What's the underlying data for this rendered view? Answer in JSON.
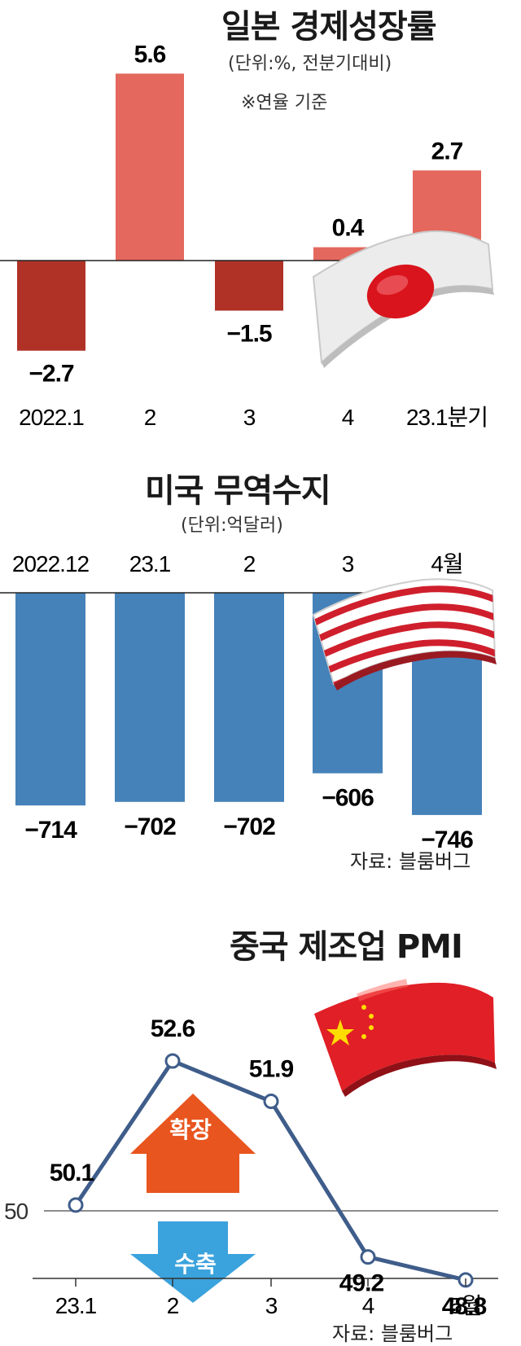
{
  "chart_data": [
    {
      "type": "bar",
      "title": "일본 경제성장률",
      "unit_note": "(단위:%, 전분기대비)",
      "note": "※연율 기준",
      "categories": [
        "2022.1",
        "2",
        "3",
        "4",
        "23.1분기"
      ],
      "values": [
        -2.7,
        5.6,
        -1.5,
        0.4,
        2.7
      ],
      "value_labels": [
        "−2.7",
        "5.6",
        "−1.5",
        "0.4",
        "2.7"
      ],
      "colors": {
        "negative": "#b03227",
        "positive": "#e4685d"
      },
      "flag_icon": "japan-flag-icon"
    },
    {
      "type": "bar",
      "title": "미국 무역수지",
      "unit_note": "(단위:억달러)",
      "categories": [
        "2022.12",
        "23.1",
        "2",
        "3",
        "4월"
      ],
      "values": [
        -714,
        -702,
        -702,
        -606,
        -746
      ],
      "value_labels": [
        "−714",
        "−702",
        "−702",
        "−606",
        "−746"
      ],
      "source": "자료: 블룸버그",
      "colors": {
        "bar": "#4582b9"
      },
      "flag_icon": "us-flag-icon"
    },
    {
      "type": "line",
      "title": "중국 제조업 PMI",
      "categories": [
        "23.1",
        "2",
        "3",
        "4",
        "5월"
      ],
      "values": [
        50.1,
        52.6,
        51.9,
        49.2,
        48.8
      ],
      "value_labels": [
        "50.1",
        "52.6",
        "51.9",
        "49.2",
        "48.8"
      ],
      "reference_line": {
        "value": 50,
        "label": "50"
      },
      "arrows": {
        "up_label": "확장",
        "down_label": "수축"
      },
      "source": "자료: 블룸버그",
      "colors": {
        "line": "#3f5d8a",
        "up_arrow": "#e8551e",
        "down_arrow": "#3aa2dc"
      },
      "flag_icon": "china-flag-icon"
    }
  ]
}
